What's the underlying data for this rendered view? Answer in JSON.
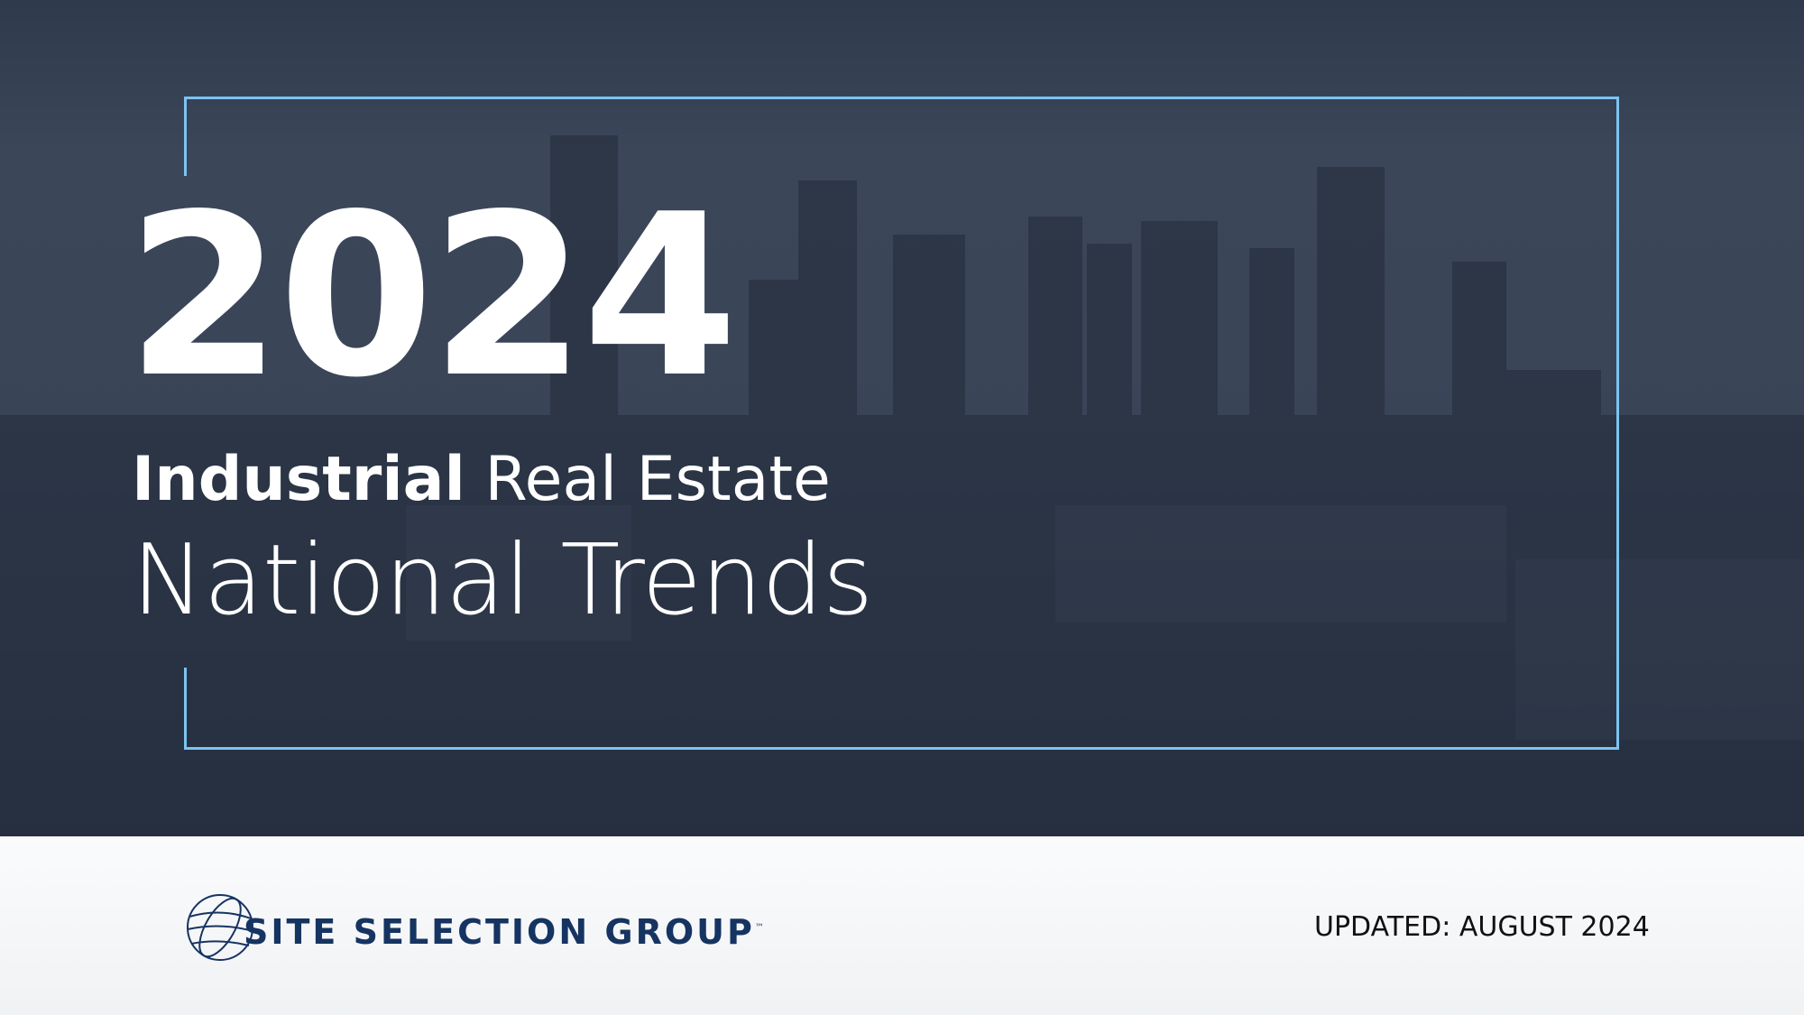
{
  "title": {
    "year": "2024",
    "subtitle_bold": "Industrial",
    "subtitle_rest": " Real Estate",
    "headline": "National Trends"
  },
  "footer": {
    "logo_text": "SITE SELECTION GROUP",
    "logo_tm": "™",
    "updated": "UPDATED: AUGUST 2024"
  },
  "colors": {
    "frame": "#7cc4f2",
    "brand": "#163462",
    "overlay": "#3a4558"
  }
}
